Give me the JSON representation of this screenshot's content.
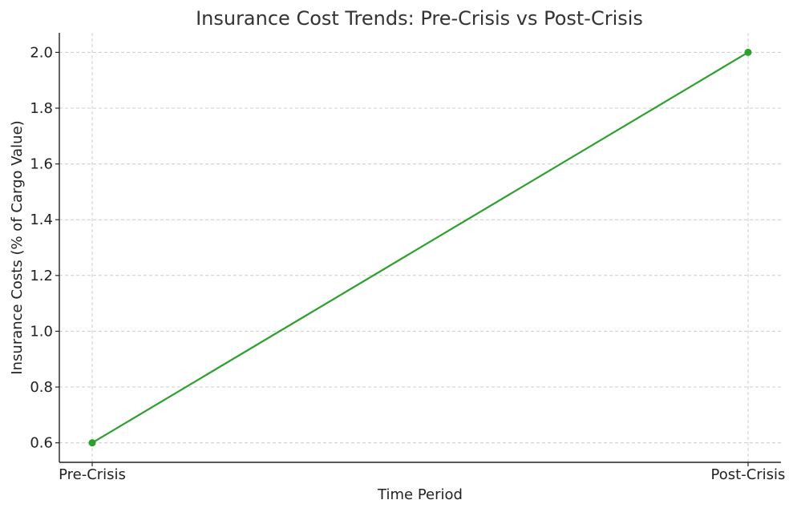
{
  "chart_data": {
    "type": "line",
    "title": "Insurance Cost Trends: Pre-Crisis vs Post-Crisis",
    "xlabel": "Time Period",
    "ylabel": "Insurance Costs (% of Cargo Value)",
    "categories": [
      "Pre-Crisis",
      "Post-Crisis"
    ],
    "series": [
      {
        "values": [
          0.6,
          2.0
        ],
        "color": "#2ca02c",
        "marker": "circle"
      }
    ],
    "ylim": [
      0.53,
      2.07
    ],
    "yticks": [
      0.6,
      0.8,
      1.0,
      1.2,
      1.4,
      1.6,
      1.8,
      2.0
    ],
    "ytick_labels": [
      "0.6",
      "0.8",
      "1.0",
      "1.2",
      "1.4",
      "1.6",
      "1.8",
      "2.0"
    ],
    "grid": true
  }
}
